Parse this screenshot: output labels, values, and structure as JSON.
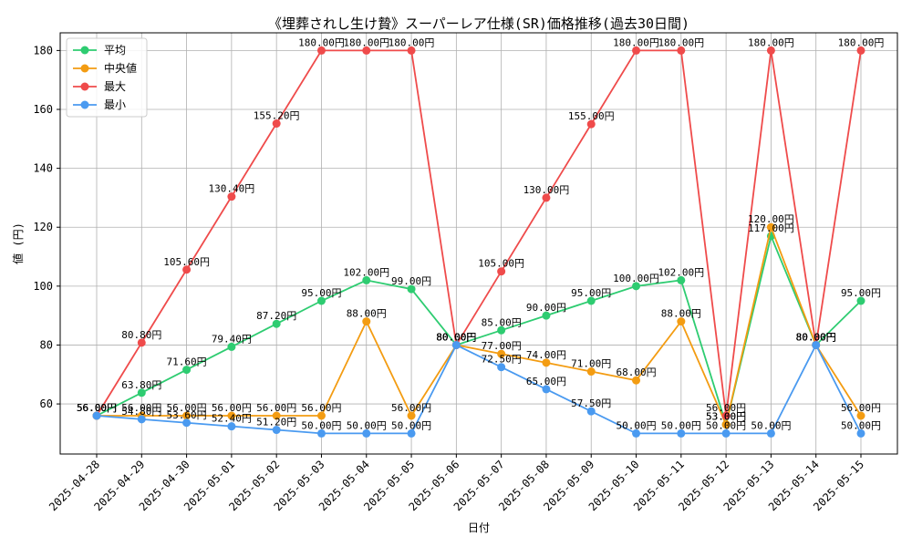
{
  "chart_data": {
    "type": "line",
    "title": "《埋葬されし生け贄》スーパーレア仕様(SR)価格推移(過去30日間)",
    "xlabel": "日付",
    "ylabel": "値 (円)",
    "ylim": [
      43,
      186
    ],
    "yticks": [
      60,
      80,
      100,
      120,
      140,
      160,
      180
    ],
    "grid": true,
    "legend_position": "top-left",
    "label_suffix": "円",
    "categories": [
      "2025-04-28",
      "2025-04-29",
      "2025-04-30",
      "2025-05-01",
      "2025-05-02",
      "2025-05-03",
      "2025-05-04",
      "2025-05-05",
      "2025-05-06",
      "2025-05-07",
      "2025-05-08",
      "2025-05-09",
      "2025-05-10",
      "2025-05-11",
      "2025-05-12",
      "2025-05-13",
      "2025-05-14",
      "2025-05-15"
    ],
    "series": [
      {
        "name": "平均",
        "color": "#2ecc71",
        "values": [
          56.0,
          63.8,
          71.6,
          79.4,
          87.2,
          95.0,
          102.0,
          99.0,
          80.0,
          85.0,
          90.0,
          95.0,
          100.0,
          102.0,
          53.0,
          117.0,
          80.0,
          95.0
        ]
      },
      {
        "name": "中央値",
        "color": "#f39c12",
        "values": [
          56.0,
          56.0,
          56.0,
          56.0,
          56.0,
          56.0,
          88.0,
          56.0,
          80.0,
          77.0,
          74.0,
          71.0,
          68.0,
          88.0,
          53.0,
          120.0,
          80.0,
          56.0
        ]
      },
      {
        "name": "最大",
        "color": "#ef4b4b",
        "values": [
          56.0,
          80.8,
          105.6,
          130.4,
          155.2,
          180.0,
          180.0,
          180.0,
          80.0,
          105.0,
          130.0,
          155.0,
          180.0,
          180.0,
          56.0,
          180.0,
          80.0,
          180.0
        ]
      },
      {
        "name": "最小",
        "color": "#4a9af0",
        "values": [
          56.0,
          54.8,
          53.6,
          52.4,
          51.2,
          50.0,
          50.0,
          50.0,
          80.0,
          72.5,
          65.0,
          57.5,
          50.0,
          50.0,
          50.0,
          50.0,
          80.0,
          50.0
        ]
      }
    ]
  }
}
